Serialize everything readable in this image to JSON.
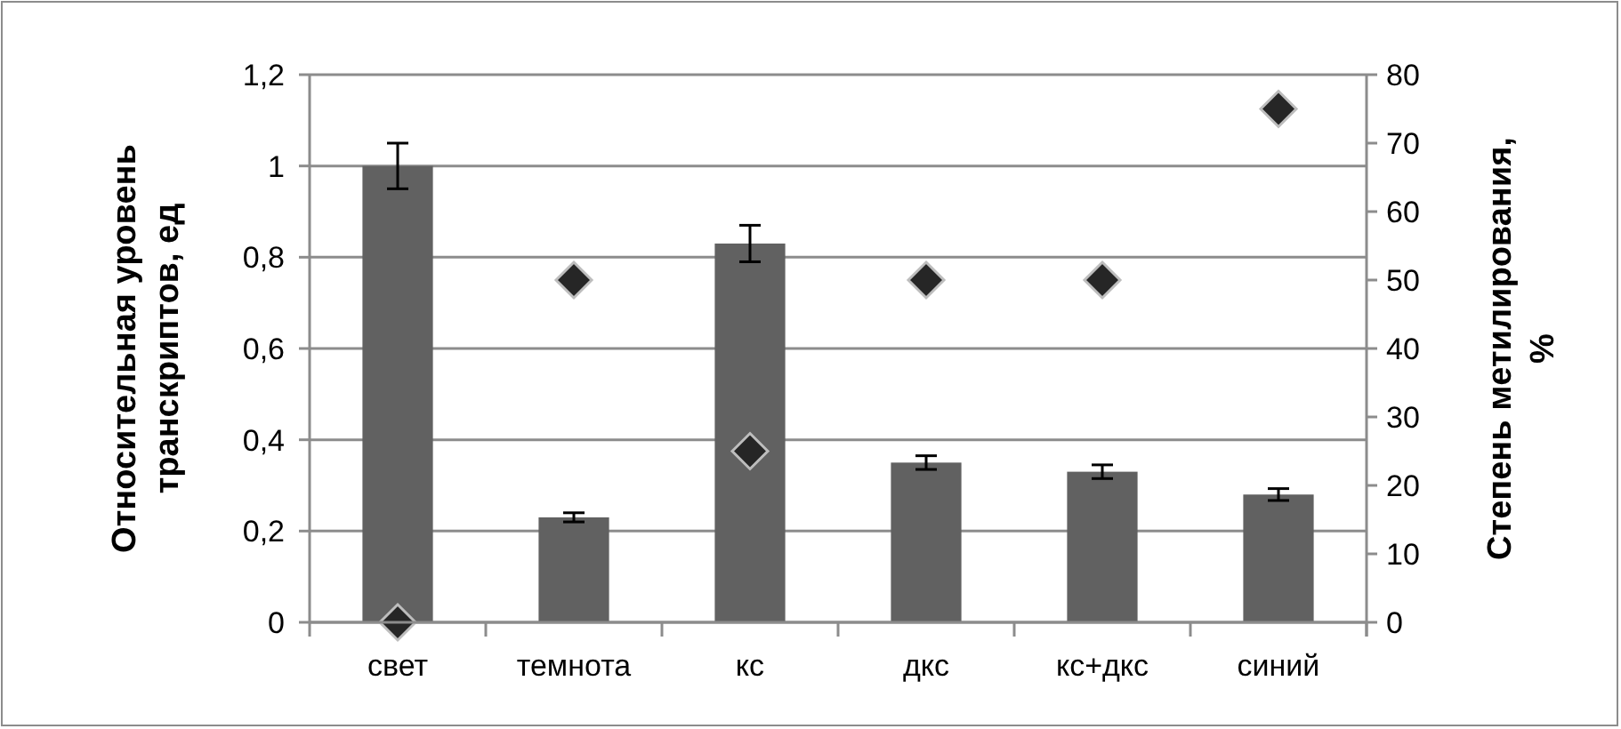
{
  "chart_data": {
    "type": "bar",
    "categories": [
      "свет",
      "темнота",
      "кс",
      "дкс",
      "кс+дкс",
      "синий"
    ],
    "ylabel": "Относительная уровень транскриптов, ед",
    "y2label": "Степень метилирования, %",
    "ylim": [
      0,
      1.2
    ],
    "yticks": [
      0,
      {
        "value": 0.2,
        "label": "0,2"
      },
      {
        "value": 0.4,
        "label": "0,4"
      },
      {
        "value": 0.6,
        "label": "0,6"
      },
      {
        "value": 0.8,
        "label": "0,8"
      },
      1,
      {
        "value": 1.2,
        "label": "1,2"
      }
    ],
    "y2lim": [
      0,
      80
    ],
    "y2ticks": [
      0,
      10,
      20,
      30,
      40,
      50,
      60,
      70,
      80
    ],
    "grid": "y",
    "series": [
      {
        "color": "#616161",
        "values": [
          1,
          0.23,
          0.83,
          0.35,
          0.33,
          0.28
        ],
        "errors": [
          0.05,
          0.01,
          0.04,
          0.015,
          0.015,
          0.013
        ]
      },
      {
        "type": "scatter",
        "axis": "y2",
        "marker": "diamond",
        "color": "#262626",
        "values": [
          0,
          50,
          25,
          50,
          50,
          75
        ]
      }
    ]
  }
}
